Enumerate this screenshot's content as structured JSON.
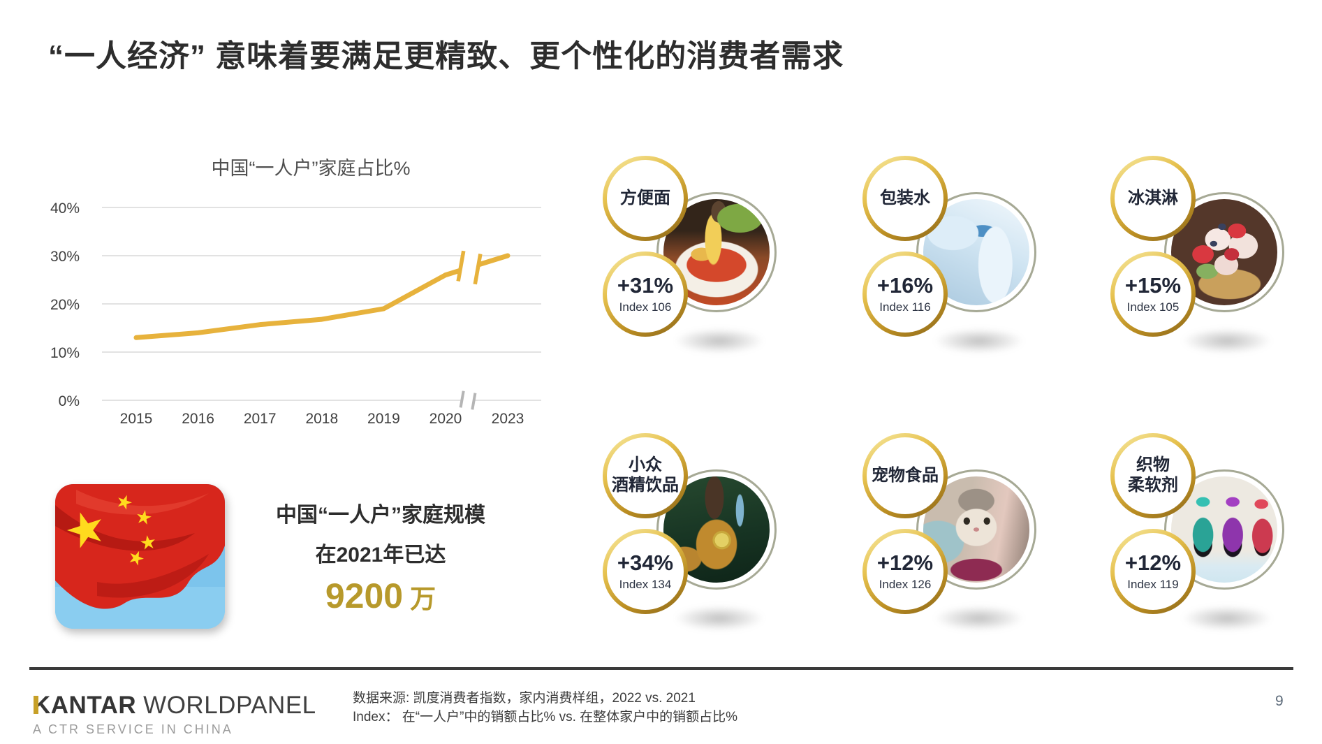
{
  "slide": {
    "title": "“一人经济” 意味着要满足更精致、更个性化的消费者需求",
    "page_number": "9"
  },
  "chart_data": {
    "type": "line",
    "title": "中国“一人户”家庭占比%",
    "x": [
      "2015",
      "2016",
      "2017",
      "2018",
      "2019",
      "2020",
      "2023"
    ],
    "values": [
      13,
      14,
      15.7,
      16.8,
      19,
      26,
      30
    ],
    "y_tick_labels": [
      "0%",
      "10%",
      "20%",
      "30%",
      "40%"
    ],
    "y_tick_values": [
      0,
      10,
      20,
      30,
      40
    ],
    "ylim": [
      0,
      42
    ],
    "grid": true,
    "legend": "none",
    "axis_break_between": [
      "2020",
      "2023"
    ],
    "line_color": "#E7B23C"
  },
  "highlight": {
    "icon": "china-flag",
    "line1": "中国“一人户”家庭规模",
    "line2": "在2021年已达",
    "value_number": "9200",
    "value_unit": "万"
  },
  "categories": [
    {
      "label_lines": [
        "方便面",
        ""
      ],
      "growth": "+31%",
      "index": "Index 106",
      "photo": "instant-noodles"
    },
    {
      "label_lines": [
        "包装水",
        ""
      ],
      "growth": "+16%",
      "index": "Index 116",
      "photo": "bottled-water"
    },
    {
      "label_lines": [
        "冰淇淋",
        ""
      ],
      "growth": "+15%",
      "index": "Index 105",
      "photo": "ice-cream"
    },
    {
      "label_lines": [
        "小众",
        "酒精饮品"
      ],
      "growth": "+34%",
      "index": "Index 134",
      "photo": "niche-alcohol-drinks"
    },
    {
      "label_lines": [
        "宠物食品",
        ""
      ],
      "growth": "+12%",
      "index": "Index 126",
      "photo": "pet-food"
    },
    {
      "label_lines": [
        "织物",
        "柔软剂"
      ],
      "growth": "+12%",
      "index": "Index 119",
      "photo": "fabric-softener"
    }
  ],
  "footer": {
    "logo_kantar": "KANTAR",
    "logo_worldpanel": "WORLDPANEL",
    "tagline": "A CTR SERVICE IN CHINA",
    "source_line1": "数据来源: 凯度消费者指数，家内消费样组，2022 vs. 2021",
    "source_line2": "Index： 在“一人户”中的销额占比% vs. 在整体家户中的销额占比%"
  },
  "colors": {
    "line_gold": "#E7B23C",
    "value_gold": "#B7992B",
    "ring_gold_light": "#F8ECA8",
    "ring_gold_dark": "#8A661B",
    "text_dark": "#202636"
  }
}
